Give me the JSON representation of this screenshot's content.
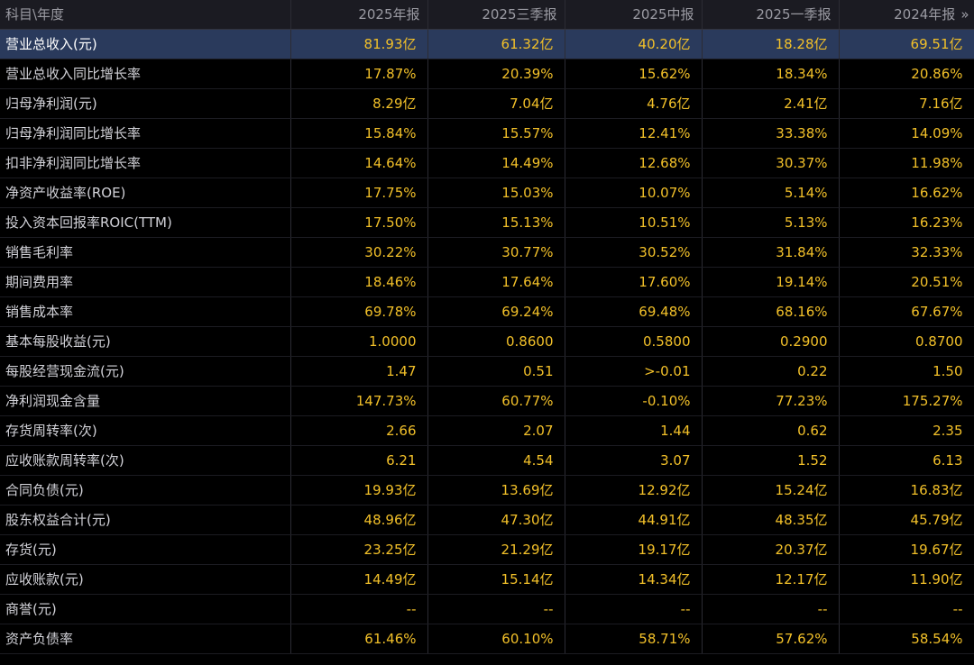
{
  "header": {
    "label": "科目\\年度",
    "columns": [
      "2025年报",
      "2025三季报",
      "2025中报",
      "2025一季报",
      "2024年报"
    ],
    "expand_icon": "»"
  },
  "selected_row": 0,
  "rows": [
    {
      "label": "营业总收入(元)",
      "values": [
        "81.93亿",
        "61.32亿",
        "40.20亿",
        "18.28亿",
        "69.51亿"
      ]
    },
    {
      "label": "营业总收入同比增长率",
      "values": [
        "17.87%",
        "20.39%",
        "15.62%",
        "18.34%",
        "20.86%"
      ]
    },
    {
      "label": "归母净利润(元)",
      "values": [
        "8.29亿",
        "7.04亿",
        "4.76亿",
        "2.41亿",
        "7.16亿"
      ]
    },
    {
      "label": "归母净利润同比增长率",
      "values": [
        "15.84%",
        "15.57%",
        "12.41%",
        "33.38%",
        "14.09%"
      ]
    },
    {
      "label": "扣非净利润同比增长率",
      "values": [
        "14.64%",
        "14.49%",
        "12.68%",
        "30.37%",
        "11.98%"
      ]
    },
    {
      "label": "净资产收益率(ROE)",
      "values": [
        "17.75%",
        "15.03%",
        "10.07%",
        "5.14%",
        "16.62%"
      ]
    },
    {
      "label": "投入资本回报率ROIC(TTM)",
      "values": [
        "17.50%",
        "15.13%",
        "10.51%",
        "5.13%",
        "16.23%"
      ]
    },
    {
      "label": "销售毛利率",
      "values": [
        "30.22%",
        "30.77%",
        "30.52%",
        "31.84%",
        "32.33%"
      ]
    },
    {
      "label": "期间费用率",
      "values": [
        "18.46%",
        "17.64%",
        "17.60%",
        "19.14%",
        "20.51%"
      ]
    },
    {
      "label": "销售成本率",
      "values": [
        "69.78%",
        "69.24%",
        "69.48%",
        "68.16%",
        "67.67%"
      ]
    },
    {
      "label": "基本每股收益(元)",
      "values": [
        "1.0000",
        "0.8600",
        "0.5800",
        "0.2900",
        "0.8700"
      ]
    },
    {
      "label": "每股经营现金流(元)",
      "values": [
        "1.47",
        "0.51",
        ">-0.01",
        "0.22",
        "1.50"
      ]
    },
    {
      "label": "净利润现金含量",
      "values": [
        "147.73%",
        "60.77%",
        "-0.10%",
        "77.23%",
        "175.27%"
      ]
    },
    {
      "label": "存货周转率(次)",
      "values": [
        "2.66",
        "2.07",
        "1.44",
        "0.62",
        "2.35"
      ]
    },
    {
      "label": "应收账款周转率(次)",
      "values": [
        "6.21",
        "4.54",
        "3.07",
        "1.52",
        "6.13"
      ]
    },
    {
      "label": "合同负债(元)",
      "values": [
        "19.93亿",
        "13.69亿",
        "12.92亿",
        "15.24亿",
        "16.83亿"
      ]
    },
    {
      "label": "股东权益合计(元)",
      "values": [
        "48.96亿",
        "47.30亿",
        "44.91亿",
        "48.35亿",
        "45.79亿"
      ]
    },
    {
      "label": "存货(元)",
      "values": [
        "23.25亿",
        "21.29亿",
        "19.17亿",
        "20.37亿",
        "19.67亿"
      ]
    },
    {
      "label": "应收账款(元)",
      "values": [
        "14.49亿",
        "15.14亿",
        "14.34亿",
        "12.17亿",
        "11.90亿"
      ]
    },
    {
      "label": "商誉(元)",
      "values": [
        "--",
        "--",
        "--",
        "--",
        "--"
      ]
    },
    {
      "label": "资产负债率",
      "values": [
        "61.46%",
        "60.10%",
        "58.71%",
        "57.62%",
        "58.54%"
      ]
    }
  ],
  "colors": {
    "background": "#000000",
    "header_bg": "#1b1b22",
    "value_text": "#f2c029",
    "label_text": "#d2d2d8",
    "selected_bg": "#2a3a5c"
  }
}
